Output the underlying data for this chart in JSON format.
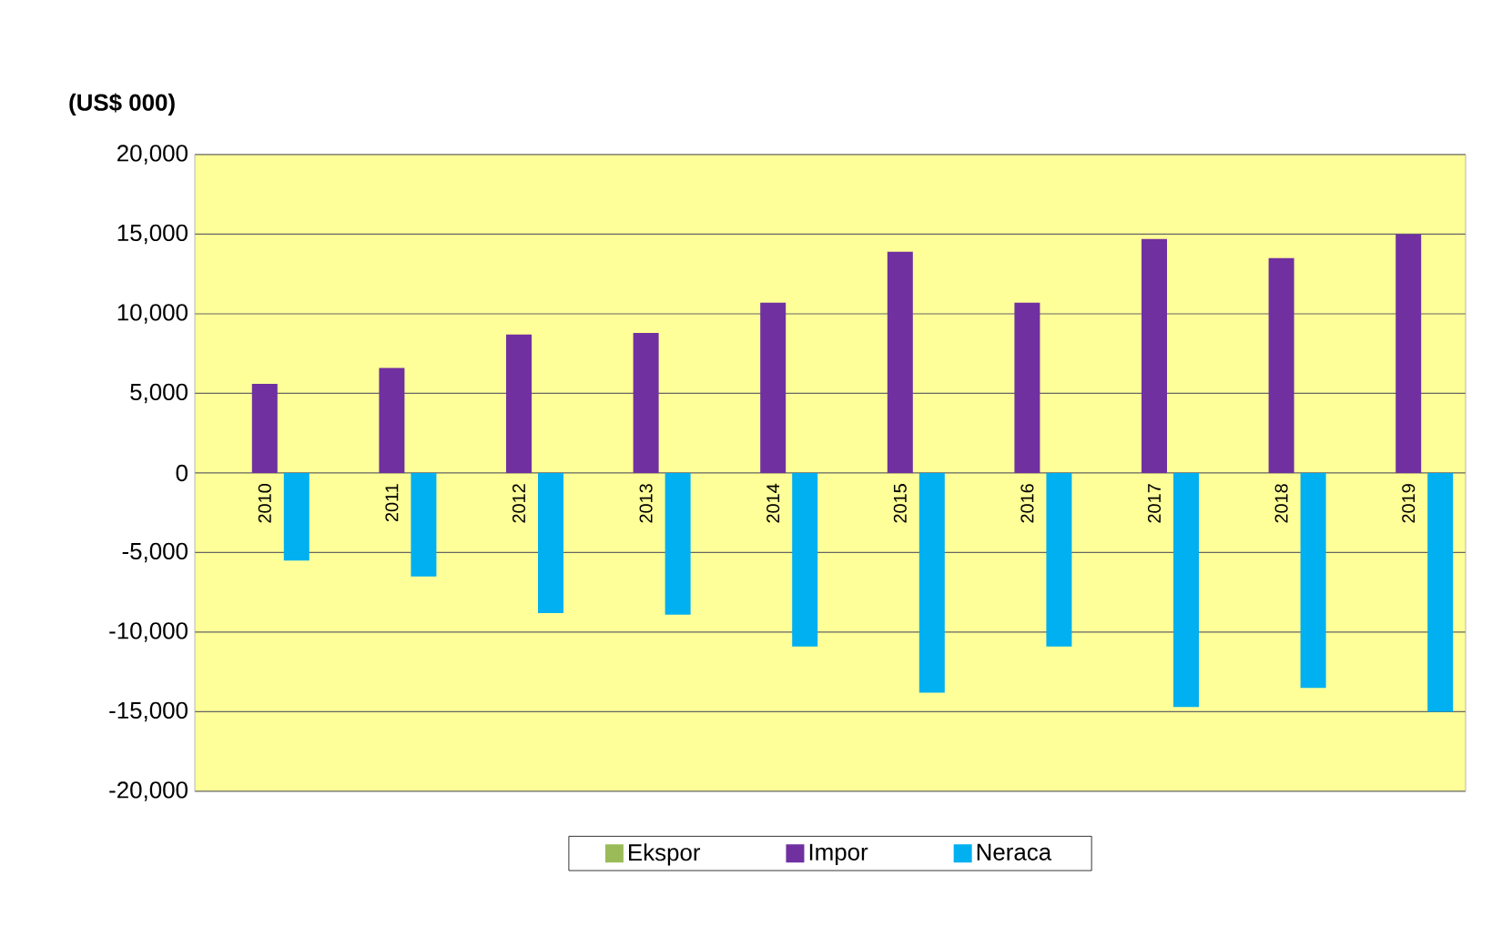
{
  "chart_data": {
    "type": "bar",
    "title": "(US$ 000)",
    "categories": [
      "2010",
      "2011",
      "2012",
      "2013",
      "2014",
      "2015",
      "2016",
      "2017",
      "2018",
      "2019"
    ],
    "series": [
      {
        "name": "Ekspor",
        "color": "#9bbb59",
        "values": [
          0,
          0,
          0,
          0,
          0,
          0,
          0,
          0,
          0,
          0
        ]
      },
      {
        "name": "Impor",
        "color": "#7030a0",
        "values": [
          5600,
          6600,
          8700,
          8800,
          10700,
          13900,
          10700,
          14700,
          13500,
          15000
        ]
      },
      {
        "name": "Neraca",
        "color": "#00b0f0",
        "values": [
          -5500,
          -6500,
          -8800,
          -8900,
          -10900,
          -13800,
          -10900,
          -14700,
          -13500,
          -15000
        ]
      }
    ],
    "ylim": [
      -20000,
      20000
    ],
    "yticks": [
      {
        "value": -20000,
        "label": "-20,000"
      },
      {
        "value": -15000,
        "label": "-15,000"
      },
      {
        "value": -10000,
        "label": "-10,000"
      },
      {
        "value": -5000,
        "label": "-5,000"
      },
      0,
      {
        "value": 5000,
        "label": "5,000"
      },
      {
        "value": 10000,
        "label": "10,000"
      },
      {
        "value": 15000,
        "label": "15,000"
      },
      {
        "value": 20000,
        "label": "20,000"
      }
    ],
    "grid": "y",
    "legend": "bottom"
  }
}
